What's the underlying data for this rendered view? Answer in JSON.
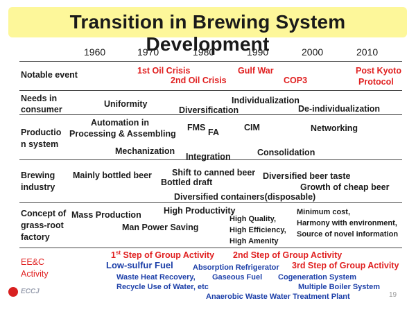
{
  "title": "Transition in Brewing System Development",
  "years": [
    "1960",
    "1970",
    "1980",
    "1990",
    "2000",
    "2010"
  ],
  "rows": {
    "notable_event": {
      "label": "Notable event",
      "items": [
        "1st Oil Crisis",
        "2nd Oil Crisis",
        "Gulf War",
        "COP3",
        "Post Kyoto",
        "Protocol"
      ]
    },
    "needs": {
      "label_1": "Needs in",
      "label_2": "consumer",
      "items": [
        "Uniformity",
        "Diversification",
        "Individualization",
        "De-individualization"
      ]
    },
    "production": {
      "label_1": "Productio",
      "label_2": "n system",
      "items": [
        "Automation in",
        "Processing & Assembling",
        "FMS",
        "FA",
        "CIM",
        "Networking",
        "Mechanization",
        "Integration",
        "Consolidation"
      ]
    },
    "brewing": {
      "label_1": "Brewing",
      "label_2": "industry",
      "items": [
        "Mainly bottled beer",
        "Shift to canned beer",
        "Bottled draft",
        "Diversified beer taste",
        "Growth of cheap beer",
        "Diversified containers(disposable)"
      ]
    },
    "concept": {
      "label_1": "Concept of",
      "label_2": "grass-root",
      "label_3": "factory",
      "items": [
        "Mass Production",
        "High Productivity",
        "Man Power Saving",
        "High Quality,",
        "High Efficiency,",
        "High Amenity",
        "Minimum cost,",
        "Harmony with environment,",
        "Source of novel information"
      ]
    },
    "eec": {
      "label_1": "EE&C",
      "label_2": "Activity",
      "step1_num": "1",
      "step1_sup": "st",
      "step1_rest": " Step of Group Activity",
      "step2": "2nd Step of Group Activity",
      "step3": "3rd Step of Group Activity",
      "items": [
        "Low-sulfur Fuel",
        "Absorption Refrigerator",
        "Waste Heat Recovery,",
        "Gaseous Fuel",
        "Cogeneration System",
        "Recycle Use of Water, etc",
        "Multiple Boiler System",
        "Anaerobic Waste Water Treatment Plant"
      ]
    }
  },
  "footer": {
    "logo_text": "ECCJ",
    "page_number": "19"
  },
  "colors": {
    "title_bg": "#fdf79a",
    "red": "#e02020",
    "blue": "#1c3fa8"
  }
}
